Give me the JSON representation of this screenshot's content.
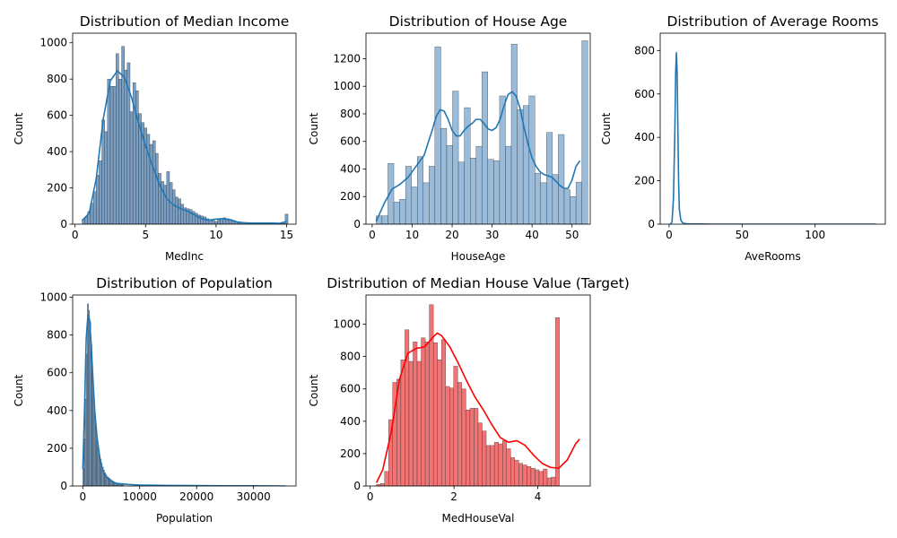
{
  "chart_data": [
    {
      "type": "bar",
      "title": "Distribution of Median Income",
      "xlabel": "MedInc",
      "ylabel": "Count",
      "xlim": [
        -0.17,
        15.67
      ],
      "ylim": [
        0,
        1053
      ],
      "xticks": [
        0,
        5,
        10,
        15
      ],
      "yticks": [
        0,
        200,
        400,
        600,
        800,
        1000
      ],
      "bin_start": 0.5,
      "bin_width": 0.2,
      "values": [
        25,
        40,
        70,
        115,
        180,
        270,
        350,
        575,
        510,
        800,
        760,
        760,
        940,
        800,
        980,
        850,
        890,
        620,
        780,
        735,
        610,
        560,
        530,
        495,
        440,
        460,
        390,
        280,
        235,
        215,
        290,
        230,
        190,
        150,
        140,
        110,
        90,
        85,
        80,
        70,
        60,
        50,
        45,
        40,
        30,
        25,
        20,
        15,
        25,
        30,
        35,
        30,
        25,
        20,
        15,
        12,
        10,
        10,
        8,
        8,
        7,
        6,
        6,
        5,
        5,
        5,
        5,
        5,
        5,
        5,
        5,
        5,
        55
      ],
      "kde": {
        "x": [
          0.5,
          1.0,
          1.5,
          2.0,
          2.5,
          3.0,
          3.5,
          4.0,
          4.5,
          5.0,
          5.5,
          6.0,
          6.5,
          7.0,
          7.5,
          8.0,
          8.5,
          9.0,
          9.5,
          10.0,
          10.5,
          11.0,
          11.5,
          12.0,
          12.5,
          13.0,
          13.5,
          14.0,
          14.5,
          15.0
        ],
        "y": [
          20,
          60,
          250,
          580,
          790,
          845,
          810,
          700,
          560,
          430,
          320,
          215,
          140,
          105,
          85,
          70,
          50,
          30,
          22,
          28,
          30,
          25,
          12,
          8,
          6,
          6,
          6,
          6,
          5,
          14
        ]
      },
      "bar_color": "#6a94bc",
      "line_color": "#1f77b4"
    },
    {
      "type": "bar",
      "title": "Distribution of House Age",
      "xlabel": "HouseAge",
      "ylabel": "Count",
      "xlim": [
        -1.55,
        54.55
      ],
      "ylim": [
        0,
        1385
      ],
      "xticks": [
        0,
        10,
        20,
        30,
        40,
        50
      ],
      "yticks": [
        0,
        200,
        400,
        600,
        800,
        1000,
        1200
      ],
      "bin_start": 1,
      "bin_width": 1.47,
      "values": [
        60,
        60,
        440,
        160,
        180,
        420,
        270,
        490,
        300,
        420,
        1285,
        695,
        570,
        965,
        450,
        845,
        480,
        565,
        1105,
        470,
        460,
        930,
        565,
        1305,
        830,
        860,
        930,
        370,
        300,
        665,
        360,
        650,
        250,
        200,
        305,
        1330
      ],
      "kde": {
        "x": [
          1,
          3,
          5,
          7,
          9,
          11,
          13,
          15,
          16,
          17,
          18,
          19,
          20,
          21,
          22,
          23,
          24,
          25,
          26,
          27,
          28,
          29,
          30,
          31,
          32,
          33,
          34,
          35,
          36,
          37,
          38,
          39,
          40,
          41,
          42,
          43,
          44,
          45,
          46,
          47,
          48,
          49,
          50,
          51,
          52
        ],
        "y": [
          20,
          150,
          255,
          290,
          340,
          420,
          500,
          680,
          780,
          830,
          820,
          760,
          680,
          640,
          640,
          680,
          710,
          730,
          760,
          760,
          730,
          690,
          680,
          700,
          760,
          860,
          940,
          960,
          930,
          840,
          700,
          580,
          480,
          420,
          380,
          360,
          350,
          340,
          310,
          280,
          260,
          260,
          320,
          420,
          460
        ]
      },
      "bar_color": "#8fb5d6",
      "line_color": "#1f77b4"
    },
    {
      "type": "line",
      "title": "Distribution of Average Rooms",
      "xlabel": "AveRooms",
      "ylabel": "Count",
      "xlim": [
        -6.1,
        148.1
      ],
      "ylim": [
        0,
        880
      ],
      "xticks": [
        0,
        50,
        100
      ],
      "yticks": [
        0,
        200,
        400,
        600,
        800
      ],
      "kde": {
        "x": [
          0.85,
          2,
          3,
          4,
          4.5,
          5,
          5.5,
          6,
          6.5,
          7,
          8,
          9,
          10,
          12,
          15,
          20,
          30,
          50,
          80,
          110,
          141.9
        ],
        "y": [
          0,
          10,
          120,
          450,
          700,
          790,
          700,
          450,
          200,
          70,
          20,
          8,
          4,
          2,
          1,
          1,
          0,
          0,
          0,
          0,
          0
        ]
      },
      "bar_color": "#6a94bc",
      "line_color": "#1f77b4"
    },
    {
      "type": "bar",
      "title": "Distribution of Population",
      "xlabel": "Population",
      "ylabel": "Count",
      "xlim": [
        -1780,
        37460
      ],
      "ylim": [
        0,
        1012
      ],
      "xticks": [
        0,
        10000,
        20000,
        30000
      ],
      "yticks": [
        0,
        200,
        400,
        600,
        800,
        1000
      ],
      "bin_start": 3,
      "bin_width": 200,
      "values": [
        90,
        250,
        460,
        700,
        965,
        930,
        870,
        750,
        600,
        470,
        380,
        300,
        240,
        200,
        170,
        140,
        120,
        100,
        85,
        70,
        60,
        50,
        45,
        40,
        35,
        30,
        26,
        22,
        18,
        16,
        14,
        12,
        10,
        9,
        8,
        7
      ],
      "kde": {
        "x": [
          3,
          300,
          600,
          900,
          1200,
          1500,
          1800,
          2100,
          2500,
          3000,
          3500,
          4000,
          5000,
          6000,
          8000,
          10000,
          15000,
          20000,
          25000,
          30000,
          35682
        ],
        "y": [
          90,
          400,
          780,
          905,
          880,
          740,
          560,
          400,
          260,
          150,
          85,
          50,
          25,
          14,
          8,
          5,
          3,
          2,
          1,
          1,
          0
        ]
      },
      "bar_color": "#6a94bc",
      "line_color": "#1f77b4"
    },
    {
      "type": "bar",
      "title": "Distribution of Median House Value (Target)",
      "xlabel": "MedHouseVal",
      "ylabel": "Count",
      "xlim": [
        -0.1,
        5.25
      ],
      "ylim": [
        0,
        1180
      ],
      "xticks": [
        0,
        2,
        4
      ],
      "yticks": [
        0,
        200,
        400,
        600,
        800,
        1000
      ],
      "bin_start": 0.15,
      "bin_width": 0.097,
      "values": [
        10,
        15,
        90,
        410,
        640,
        660,
        780,
        965,
        770,
        890,
        770,
        915,
        890,
        1120,
        885,
        780,
        905,
        615,
        605,
        740,
        640,
        600,
        470,
        480,
        480,
        390,
        340,
        250,
        250,
        270,
        260,
        280,
        230,
        175,
        160,
        140,
        130,
        120,
        110,
        100,
        90,
        105,
        50,
        55,
        1040
      ],
      "kde": {
        "x": [
          0.15,
          0.3,
          0.5,
          0.7,
          0.9,
          1.1,
          1.3,
          1.5,
          1.6,
          1.7,
          1.9,
          2.1,
          2.3,
          2.5,
          2.7,
          2.9,
          3.1,
          3.3,
          3.5,
          3.7,
          3.9,
          4.1,
          4.3,
          4.5,
          4.7,
          4.9,
          5.0
        ],
        "y": [
          20,
          100,
          330,
          660,
          820,
          850,
          860,
          920,
          945,
          930,
          860,
          760,
          650,
          550,
          470,
          380,
          300,
          270,
          280,
          250,
          190,
          140,
          115,
          110,
          160,
          260,
          290
        ]
      },
      "bar_color": "#f06464",
      "line_color": "#ff0000"
    }
  ]
}
